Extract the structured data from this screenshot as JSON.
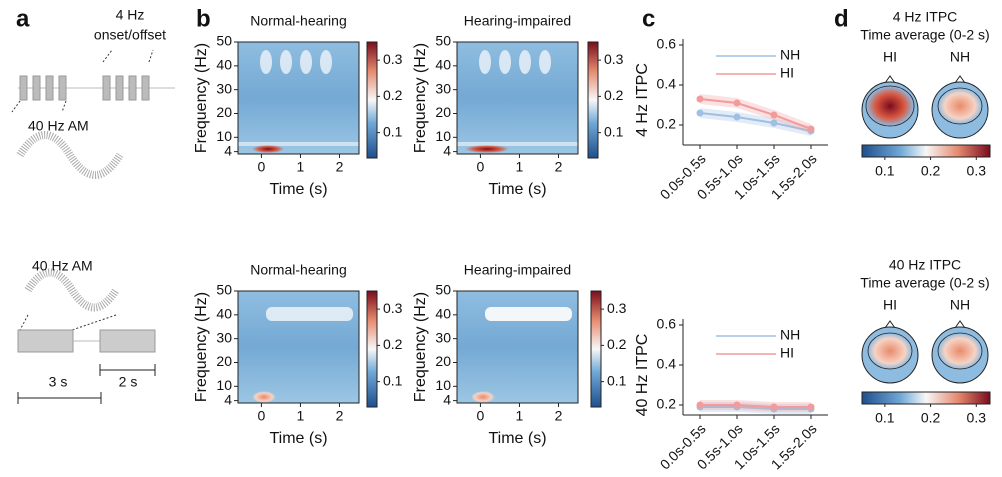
{
  "figure": {
    "panel_labels": [
      "a",
      "b",
      "c",
      "d"
    ],
    "stimulus": {
      "onset_rate": "4 Hz",
      "onset_text": "onset/offset",
      "am_top": "40 Hz AM",
      "am_bottom": "40 Hz AM",
      "scale_long": "3 s",
      "scale_short": "2 s"
    },
    "spectrograms": [
      {
        "title": "Normal-hearing",
        "ylabel": "Frequency (Hz)",
        "xlabel": "Time (s)",
        "xlim": [
          -0.6,
          2.5
        ],
        "ylim": [
          3,
          50
        ],
        "xticks": [
          0,
          1,
          2
        ],
        "yticks": [
          4,
          10,
          20,
          30,
          40,
          50
        ],
        "clim": [
          0.03,
          0.35
        ],
        "colorbar_ticks": [
          0.1,
          0.2,
          0.3
        ]
      },
      {
        "title": "Hearing-impaired",
        "ylabel": "Frequency (Hz)",
        "xlabel": "Time (s)",
        "xlim": [
          -0.6,
          2.5
        ],
        "ylim": [
          3,
          50
        ],
        "xticks": [
          0,
          1,
          2
        ],
        "yticks": [
          4,
          10,
          20,
          30,
          40,
          50
        ],
        "clim": [
          0.03,
          0.35
        ],
        "colorbar_ticks": [
          0.1,
          0.2,
          0.3
        ]
      },
      {
        "title": "Normal-hearing",
        "ylabel": "Frequency (Hz)",
        "xlabel": "Time (s)",
        "xlim": [
          -0.6,
          2.5
        ],
        "ylim": [
          3,
          50
        ],
        "xticks": [
          0,
          1,
          2
        ],
        "yticks": [
          4,
          10,
          20,
          30,
          40,
          50
        ],
        "clim": [
          0.03,
          0.35
        ],
        "colorbar_ticks": [
          0.1,
          0.2,
          0.3
        ]
      },
      {
        "title": "Hearing-impaired",
        "ylabel": "Frequency (Hz)",
        "xlabel": "Time (s)",
        "xlim": [
          -0.6,
          2.5
        ],
        "ylim": [
          3,
          50
        ],
        "xticks": [
          0,
          1,
          2
        ],
        "yticks": [
          4,
          10,
          20,
          30,
          40,
          50
        ],
        "clim": [
          0.03,
          0.35
        ],
        "colorbar_ticks": [
          0.1,
          0.2,
          0.3
        ]
      }
    ],
    "topomaps": [
      {
        "title": "4 Hz ITPC",
        "subtitle": "Time average (0-2 s)",
        "heads": [
          "HI",
          "NH"
        ],
        "clim": [
          0.05,
          0.33
        ],
        "colorbar_ticks": [
          0.1,
          0.2,
          0.3
        ]
      },
      {
        "title": "40 Hz ITPC",
        "subtitle": "Time average (0-2 s)",
        "heads": [
          "HI",
          "NH"
        ],
        "clim": [
          0.05,
          0.33
        ],
        "colorbar_ticks": [
          0.1,
          0.2,
          0.3
        ]
      }
    ]
  },
  "chart_data": [
    {
      "type": "line",
      "ylabel": "4 Hz ITPC",
      "categories": [
        "0.0s-0.5s",
        "0.5s-1.0s",
        "1.0s-1.5s",
        "1.5s-2.0s"
      ],
      "ylim": [
        0.1,
        0.63
      ],
      "yticks": [
        0.2,
        0.4,
        0.6
      ],
      "series": [
        {
          "name": "NH",
          "color": "#9fbfe3",
          "values": [
            0.26,
            0.24,
            0.21,
            0.17
          ]
        },
        {
          "name": "HI",
          "color": "#f29b9b",
          "values": [
            0.33,
            0.31,
            0.25,
            0.18
          ]
        }
      ]
    },
    {
      "type": "line",
      "ylabel": "40 Hz ITPC",
      "categories": [
        "0.0s-0.5s",
        "0.5s-1.0s",
        "1.0s-1.5s",
        "1.5s-2.0s"
      ],
      "ylim": [
        0.15,
        0.63
      ],
      "yticks": [
        0.2,
        0.4,
        0.6
      ],
      "series": [
        {
          "name": "NH",
          "color": "#9fbfe3",
          "values": [
            0.19,
            0.19,
            0.18,
            0.18
          ]
        },
        {
          "name": "HI",
          "color": "#f29b9b",
          "values": [
            0.2,
            0.2,
            0.19,
            0.19
          ]
        }
      ]
    }
  ]
}
